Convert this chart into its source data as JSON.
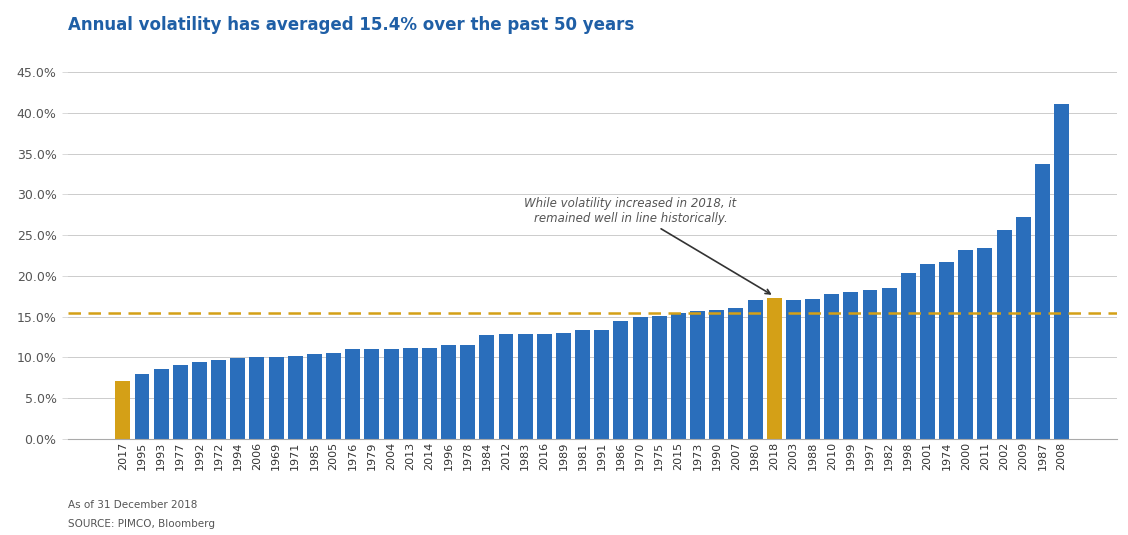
{
  "title": "Annual volatility has averaged 15.4% over the past 50 years",
  "title_color": "#1f5fa6",
  "title_fontsize": 12,
  "bar_color_default": "#2a6ebb",
  "bar_color_highlight": "#d4a017",
  "avg_line": 0.154,
  "avg_line_color": "#d4a017",
  "footnote1": "As of 31 December 2018",
  "footnote2": "SOURCE: PIMCO, Bloomberg",
  "annotation_text": "While volatility increased in 2018, it\nremained well in line historically.",
  "annotation_color": "#555555",
  "background_color": "#ffffff",
  "ylabel_color": "#555555",
  "years": [
    "2017",
    "1995",
    "1993",
    "1977",
    "1992",
    "1972",
    "1994",
    "2006",
    "1969",
    "1971",
    "1985",
    "2005",
    "1976",
    "1979",
    "2004",
    "2013",
    "2014",
    "1996",
    "1978",
    "1984",
    "2012",
    "1983",
    "2016",
    "1989",
    "1981",
    "1991",
    "1986",
    "1970",
    "1975",
    "2015",
    "1973",
    "1990",
    "2007",
    "1980",
    "2018",
    "2003",
    "1988",
    "2010",
    "1999",
    "1997",
    "1982",
    "1998",
    "2001",
    "1974",
    "2000",
    "2011",
    "2002",
    "2009",
    "1987",
    "2008"
  ],
  "values": [
    0.071,
    0.08,
    0.086,
    0.09,
    0.094,
    0.097,
    0.099,
    0.1,
    0.1,
    0.102,
    0.104,
    0.105,
    0.11,
    0.11,
    0.11,
    0.111,
    0.111,
    0.115,
    0.115,
    0.127,
    0.128,
    0.128,
    0.129,
    0.13,
    0.133,
    0.133,
    0.144,
    0.15,
    0.151,
    0.154,
    0.157,
    0.158,
    0.16,
    0.17,
    0.173,
    0.17,
    0.172,
    0.178,
    0.18,
    0.183,
    0.185,
    0.204,
    0.215,
    0.217,
    0.232,
    0.234,
    0.256,
    0.272,
    0.338,
    0.411
  ],
  "highlight_years": [
    "2017",
    "2018"
  ],
  "ylim": [
    0.0,
    0.46
  ],
  "yticks": [
    0.0,
    0.05,
    0.1,
    0.15,
    0.2,
    0.25,
    0.3,
    0.35,
    0.4,
    0.45
  ]
}
